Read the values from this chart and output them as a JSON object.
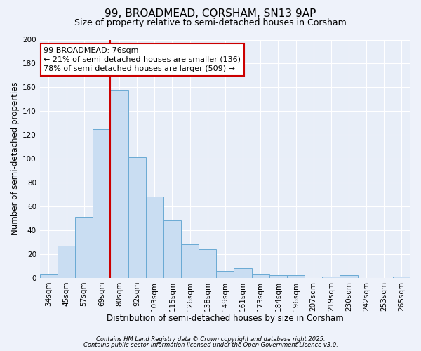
{
  "title": "99, BROADMEAD, CORSHAM, SN13 9AP",
  "subtitle": "Size of property relative to semi-detached houses in Corsham",
  "bar_labels": [
    "34sqm",
    "45sqm",
    "57sqm",
    "69sqm",
    "80sqm",
    "92sqm",
    "103sqm",
    "115sqm",
    "126sqm",
    "138sqm",
    "149sqm",
    "161sqm",
    "173sqm",
    "184sqm",
    "196sqm",
    "207sqm",
    "219sqm",
    "230sqm",
    "242sqm",
    "253sqm",
    "265sqm"
  ],
  "bar_values": [
    3,
    27,
    51,
    125,
    158,
    101,
    68,
    48,
    28,
    24,
    6,
    8,
    3,
    2,
    2,
    0,
    1,
    2,
    0,
    0,
    1
  ],
  "bar_color": "#c9ddf2",
  "bar_edge_color": "#6aaad4",
  "ylabel": "Number of semi-detached properties",
  "xlabel": "Distribution of semi-detached houses by size in Corsham",
  "ylim": [
    0,
    200
  ],
  "yticks": [
    0,
    20,
    40,
    60,
    80,
    100,
    120,
    140,
    160,
    180,
    200
  ],
  "vline_x": 3.5,
  "vline_color": "#cc0000",
  "annotation_title": "99 BROADMEAD: 76sqm",
  "annotation_line1": "← 21% of semi-detached houses are smaller (136)",
  "annotation_line2": "78% of semi-detached houses are larger (509) →",
  "annotation_box_color": "#ffffff",
  "annotation_box_edge": "#cc0000",
  "footer1": "Contains HM Land Registry data © Crown copyright and database right 2025.",
  "footer2": "Contains public sector information licensed under the Open Government Licence v3.0.",
  "bg_color": "#eef2fa",
  "plot_bg_color": "#e8eef8",
  "grid_color": "#ffffff",
  "title_fontsize": 11,
  "subtitle_fontsize": 9,
  "axis_label_fontsize": 8.5,
  "tick_fontsize": 7.5,
  "annotation_fontsize": 8,
  "footer_fontsize": 6
}
